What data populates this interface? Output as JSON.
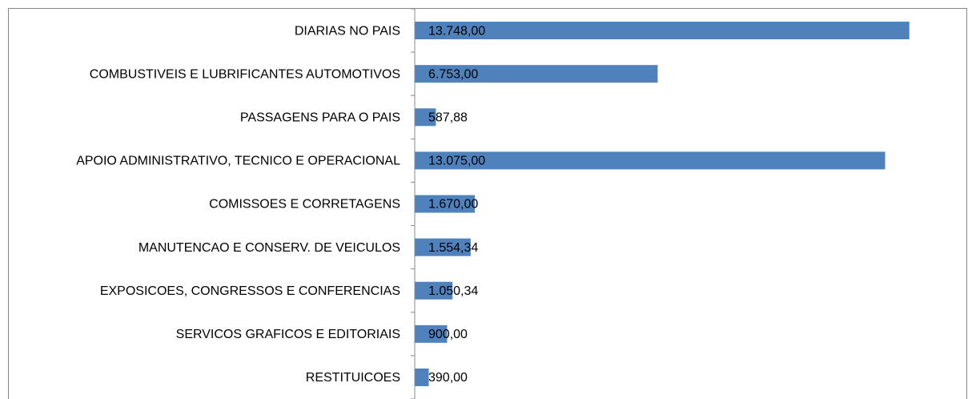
{
  "chart_data": {
    "type": "barh",
    "categories": [
      "DIARIAS NO PAIS",
      "COMBUSTIVEIS E LUBRIFICANTES AUTOMOTIVOS",
      "PASSAGENS PARA O PAIS",
      "APOIO ADMINISTRATIVO, TECNICO E OPERACIONAL",
      "COMISSOES E CORRETAGENS",
      "MANUTENCAO E CONSERV. DE VEICULOS",
      "EXPOSICOES, CONGRESSOS E CONFERENCIAS",
      "SERVICOS GRAFICOS E EDITORIAIS",
      "RESTITUICOES"
    ],
    "values": [
      13748,
      6753,
      587.88,
      13075,
      1670,
      1554.34,
      1050.34,
      900,
      390
    ],
    "value_labels": [
      "13.748,00",
      "6.753,00",
      "587,88",
      "13.075,00",
      "1.670,00",
      "1.554,34",
      "1.050,34",
      "900,00",
      "390,00"
    ],
    "color": "#4f81bd",
    "xlim": [
      0,
      15000
    ]
  }
}
